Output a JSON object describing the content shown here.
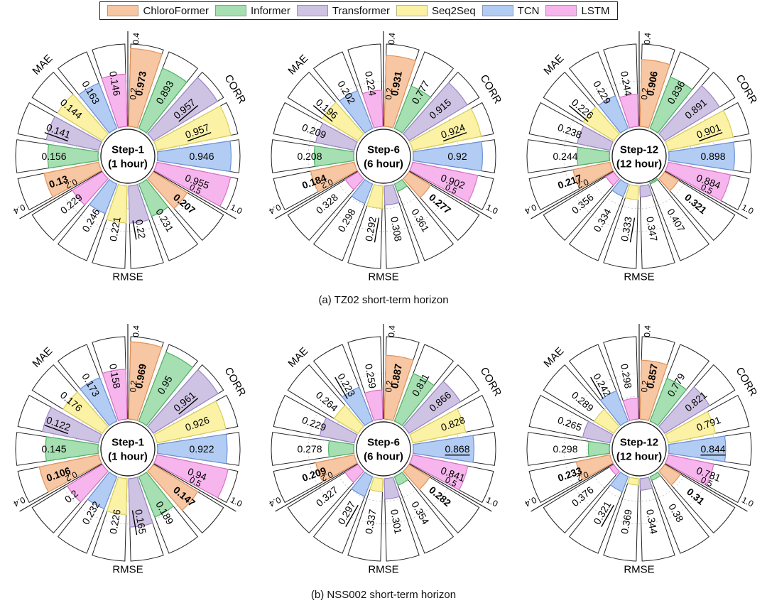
{
  "legend": [
    {
      "name": "ChloroFormer",
      "color": "#f7c6a2"
    },
    {
      "name": "Informer",
      "color": "#a6dfb1"
    },
    {
      "name": "Transformer",
      "color": "#cfc3e4"
    },
    {
      "name": "Seq2Seq",
      "color": "#fbf2a6"
    },
    {
      "name": "TCN",
      "color": "#b2ccf3"
    },
    {
      "name": "LSTM",
      "color": "#f6b6ed"
    }
  ],
  "edge_colors": [
    "#e0945c",
    "#4fb067",
    "#9a86c4",
    "#d9cf5a",
    "#6c92d6",
    "#d872c6"
  ],
  "metric_labels": {
    "mae": "MAE",
    "corr": "CORR",
    "rmse": "RMSE"
  },
  "scale_labels": {
    "mae": [
      "0.2",
      "0.4"
    ],
    "corr": [
      "0.5",
      "1.0"
    ],
    "rmse": [
      "0.2",
      "0.4"
    ]
  },
  "captions": [
    "(a) TZ02 short-term horizon",
    "(b) NSS002 short-term horizon"
  ],
  "chart_data": [
    {
      "type": "radial-bar",
      "dataset": "TZ02",
      "center": [
        "Step-1",
        "(1 hour)"
      ],
      "mae": [
        0.13,
        0.156,
        0.141,
        0.144,
        0.163,
        0.146
      ],
      "mae_bold": 0,
      "mae_under": 2,
      "corr": [
        0.973,
        0.893,
        0.957,
        0.957,
        0.946,
        0.955
      ],
      "corr_bold": 0,
      "corr_under": [
        2,
        3
      ],
      "rmse": [
        0.207,
        0.231,
        0.22,
        0.221,
        0.246,
        0.229
      ],
      "rmse_bold": 0,
      "rmse_under": 2
    },
    {
      "type": "radial-bar",
      "dataset": "TZ02",
      "center": [
        "Step-6",
        "(6 hour)"
      ],
      "mae": [
        0.184,
        0.208,
        0.209,
        0.196,
        0.202,
        0.224
      ],
      "mae_bold": 0,
      "mae_under": 3,
      "corr": [
        0.931,
        0.777,
        0.915,
        0.924,
        0.92,
        0.902
      ],
      "corr_bold": 0,
      "corr_under": 3,
      "rmse": [
        0.277,
        0.361,
        0.308,
        0.292,
        0.298,
        0.328
      ],
      "rmse_bold": 0,
      "rmse_under": 3
    },
    {
      "type": "radial-bar",
      "dataset": "TZ02",
      "center": [
        "Step-12",
        "(12 hour)"
      ],
      "mae": [
        0.217,
        0.244,
        0.238,
        0.226,
        0.229,
        0.244
      ],
      "mae_bold": 0,
      "mae_under": 3,
      "corr": [
        0.906,
        0.836,
        0.891,
        0.901,
        0.898,
        0.884
      ],
      "corr_bold": 0,
      "corr_under": 3,
      "rmse": [
        0.321,
        0.407,
        0.347,
        0.333,
        0.334,
        0.356
      ],
      "rmse_bold": 0,
      "rmse_under": 3
    },
    {
      "type": "radial-bar",
      "dataset": "NSS002",
      "center": [
        "Step-1",
        "(1 hour)"
      ],
      "mae": [
        0.106,
        0.145,
        0.122,
        0.176,
        0.173,
        0.158
      ],
      "mae_bold": 0,
      "mae_under": 2,
      "corr": [
        0.969,
        0.95,
        0.961,
        0.926,
        0.922,
        0.94
      ],
      "corr_bold": 0,
      "corr_under": 2,
      "rmse": [
        0.147,
        0.189,
        0.165,
        0.226,
        0.232,
        0.2
      ],
      "rmse_bold": 0,
      "rmse_under": 2
    },
    {
      "type": "radial-bar",
      "dataset": "NSS002",
      "center": [
        "Step-6",
        "(6 hour)"
      ],
      "mae": [
        0.209,
        0.278,
        0.229,
        0.264,
        0.223,
        0.259
      ],
      "mae_bold": 0,
      "mae_under": 4,
      "corr": [
        0.887,
        0.811,
        0.866,
        0.828,
        0.868,
        0.841
      ],
      "corr_bold": 0,
      "corr_under": 4,
      "rmse": [
        0.282,
        0.354,
        0.301,
        0.337,
        0.297,
        0.327
      ],
      "rmse_bold": 0,
      "rmse_under": 4
    },
    {
      "type": "radial-bar",
      "dataset": "NSS002",
      "center": [
        "Step-12",
        "(12 hour)"
      ],
      "mae": [
        0.233,
        0.298,
        0.265,
        0.289,
        0.242,
        0.298
      ],
      "mae_bold": 0,
      "mae_under": 4,
      "corr": [
        0.857,
        0.779,
        0.821,
        0.791,
        0.844,
        0.781
      ],
      "corr_bold": 0,
      "corr_under": 4,
      "rmse": [
        0.31,
        0.38,
        0.344,
        0.369,
        0.321,
        0.376
      ],
      "rmse_bold": 0,
      "rmse_under": 4
    }
  ]
}
